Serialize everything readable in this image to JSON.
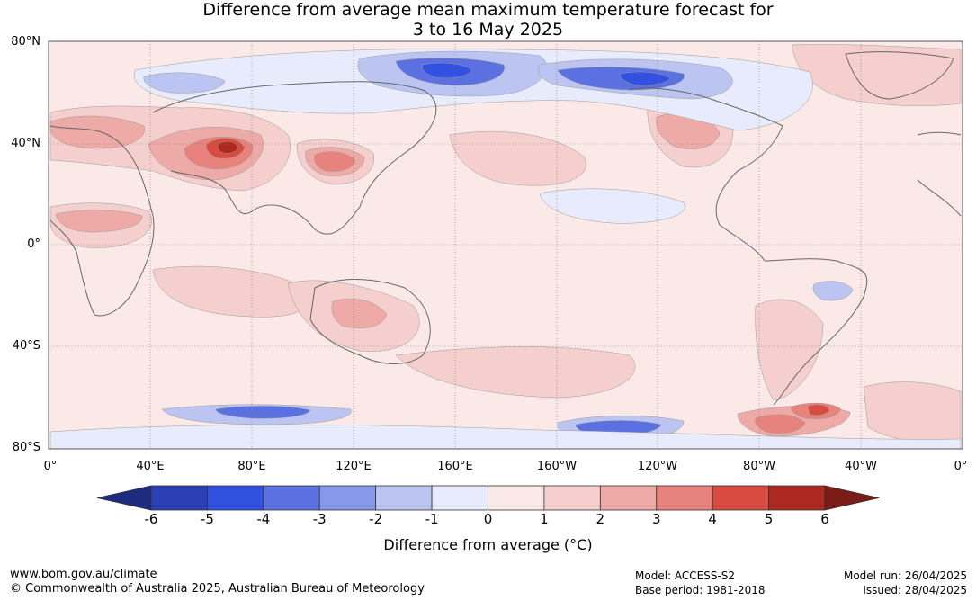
{
  "title": {
    "line1": "Difference from average mean maximum temperature forecast for",
    "line2": "3 to 16 May 2025"
  },
  "axes": {
    "lat_labels": [
      "80°N",
      "40°N",
      "0°",
      "40°S",
      "80°S"
    ],
    "lon_labels": [
      "0°",
      "40°E",
      "80°E",
      "120°E",
      "160°E",
      "160°W",
      "120°W",
      "80°W",
      "40°W",
      "0°"
    ]
  },
  "colorbar": {
    "label": "Difference from average (°C)",
    "ticks": [
      "-6",
      "-5",
      "-4",
      "-3",
      "-2",
      "-1",
      "0",
      "1",
      "2",
      "3",
      "4",
      "5",
      "6"
    ],
    "colors": [
      "#1d2c7e",
      "#2a40b4",
      "#3351e0",
      "#5b71e2",
      "#8797ea",
      "#bcc5f2",
      "#e8ebfb",
      "#fbe9e8",
      "#f5cfcd",
      "#eeaaa6",
      "#e7827d",
      "#d94a40",
      "#ac2a22",
      "#7b1c16"
    ]
  },
  "footer": {
    "website": "www.bom.gov.au/climate",
    "copyright": "© Commonwealth of Australia 2025, Australian Bureau of Meteorology",
    "model": "Model: ACCESS-S2",
    "base_period": "Base period: 1981-2018",
    "model_run": "Model run: 26/04/2025",
    "issued": "Issued: 28/04/2025"
  }
}
